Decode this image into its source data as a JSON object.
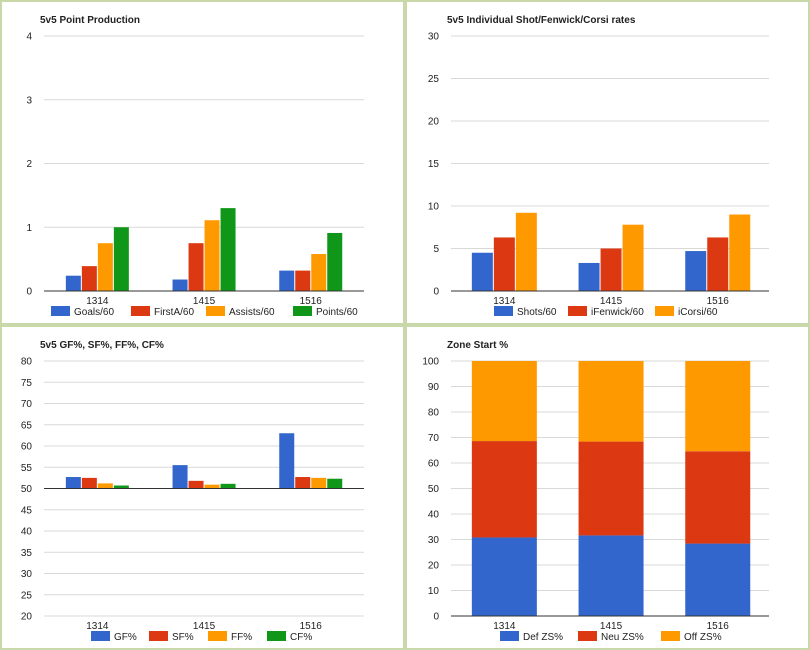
{
  "colors": {
    "blue": "#3366cc",
    "red": "#dc3912",
    "orange": "#ff9900",
    "green": "#109618",
    "grid": "#d9d9d9",
    "axis": "#333333",
    "border": "#c8d8a8"
  },
  "chart_data": [
    {
      "type": "bar",
      "title": "5v5 Point Production",
      "xlabel": "",
      "ylabel": "",
      "categories": [
        "1314",
        "1415",
        "1516"
      ],
      "ylim": [
        0,
        4
      ],
      "yticks": [
        0,
        1,
        2,
        3,
        4
      ],
      "grid": true,
      "legend": "bottom",
      "series": [
        {
          "name": "Goals/60",
          "color": "#3366cc",
          "values": [
            0.24,
            0.18,
            0.32
          ]
        },
        {
          "name": "FirstA/60",
          "color": "#dc3912",
          "values": [
            0.39,
            0.75,
            0.32
          ]
        },
        {
          "name": "Assists/60",
          "color": "#ff9900",
          "values": [
            0.75,
            1.11,
            0.58
          ]
        },
        {
          "name": "Points/60",
          "color": "#109618",
          "values": [
            1.0,
            1.3,
            0.91
          ]
        }
      ]
    },
    {
      "type": "bar",
      "title": "5v5 Individual Shot/Fenwick/Corsi rates",
      "xlabel": "",
      "ylabel": "",
      "categories": [
        "1314",
        "1415",
        "1516"
      ],
      "ylim": [
        0,
        30
      ],
      "yticks": [
        0,
        5,
        10,
        15,
        20,
        25,
        30
      ],
      "grid": true,
      "legend": "bottom",
      "series": [
        {
          "name": "Shots/60",
          "color": "#3366cc",
          "values": [
            4.5,
            3.3,
            4.7
          ]
        },
        {
          "name": "iFenwick/60",
          "color": "#dc3912",
          "values": [
            6.3,
            5.0,
            6.3
          ]
        },
        {
          "name": "iCorsi/60",
          "color": "#ff9900",
          "values": [
            9.2,
            7.8,
            9.0
          ]
        }
      ]
    },
    {
      "type": "bar",
      "title": "5v5 GF%, SF%, FF%, CF%",
      "xlabel": "",
      "ylabel": "",
      "categories": [
        "1314",
        "1415",
        "1516"
      ],
      "ylim": [
        20,
        80
      ],
      "baseline": 50,
      "yticks": [
        20,
        25,
        30,
        35,
        40,
        45,
        50,
        55,
        60,
        65,
        70,
        75,
        80
      ],
      "grid": true,
      "legend": "bottom",
      "series": [
        {
          "name": "GF%",
          "color": "#3366cc",
          "values": [
            52.7,
            55.5,
            63.0
          ]
        },
        {
          "name": "SF%",
          "color": "#dc3912",
          "values": [
            52.5,
            51.8,
            52.7
          ]
        },
        {
          "name": "FF%",
          "color": "#ff9900",
          "values": [
            51.2,
            50.9,
            52.5
          ]
        },
        {
          "name": "CF%",
          "color": "#109618",
          "values": [
            50.7,
            51.1,
            52.3
          ]
        }
      ]
    },
    {
      "type": "stacked-bar",
      "title": "Zone Start %",
      "xlabel": "",
      "ylabel": "",
      "categories": [
        "1314",
        "1415",
        "1516"
      ],
      "ylim": [
        0,
        100
      ],
      "yticks": [
        0,
        10,
        20,
        30,
        40,
        50,
        60,
        70,
        80,
        90,
        100
      ],
      "grid": true,
      "legend": "bottom",
      "series": [
        {
          "name": "Def ZS%",
          "color": "#3366cc",
          "values": [
            30.8,
            31.6,
            28.4
          ]
        },
        {
          "name": "Neu ZS%",
          "color": "#dc3912",
          "values": [
            37.8,
            36.8,
            36.2
          ]
        },
        {
          "name": "Off ZS%",
          "color": "#ff9900",
          "values": [
            31.4,
            31.6,
            35.4
          ]
        }
      ]
    }
  ]
}
